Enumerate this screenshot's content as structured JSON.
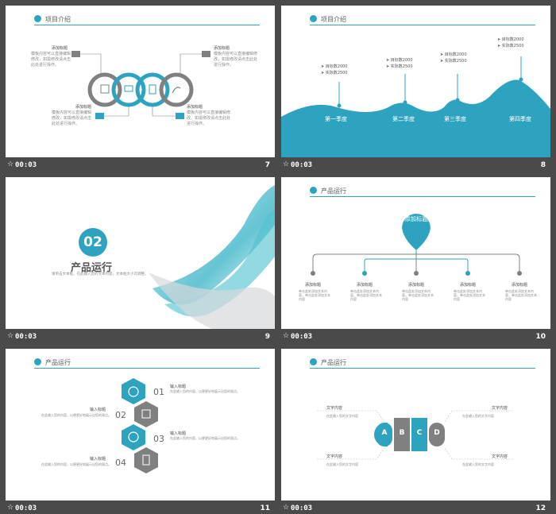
{
  "timestamp": "00:03",
  "slides": [
    {
      "number": "7",
      "title": "项目介绍",
      "heading": "添加标题",
      "body": "模板内容可以直接编辑修改，如需修改请点击此处进行操作。"
    },
    {
      "number": "8",
      "title": "项目介绍",
      "seasons": [
        "第一季度",
        "第二季度",
        "第三季度",
        "第四季度"
      ],
      "goal": "目标数2000",
      "actual": "实际数2500"
    },
    {
      "number": "9",
      "section_number": "02",
      "section_title": "产品运行",
      "section_desc": "请单击文本框，在此输入您的文本内容，文本框大小可调整。"
    },
    {
      "number": "10",
      "title": "产品运行",
      "center_label": "添加标题",
      "node_heading": "添加标题",
      "node_text": "单击此处添加文本内容，单击此处添加文本内容"
    },
    {
      "number": "11",
      "title": "产品运行",
      "steps": [
        "01",
        "02",
        "03",
        "04"
      ],
      "step_heading": "输入标题",
      "step_text": "在此输入您的内容，以便更好地展示出您的观点。"
    },
    {
      "number": "12",
      "title": "产品运行",
      "letters": [
        "A",
        "B",
        "C",
        "D"
      ],
      "label": "文字内容",
      "label_text": "在此输入您的文字内容"
    }
  ],
  "colors": {
    "accent": "#2ea3c0",
    "gray": "#808080",
    "background": "#4a4a4a"
  }
}
